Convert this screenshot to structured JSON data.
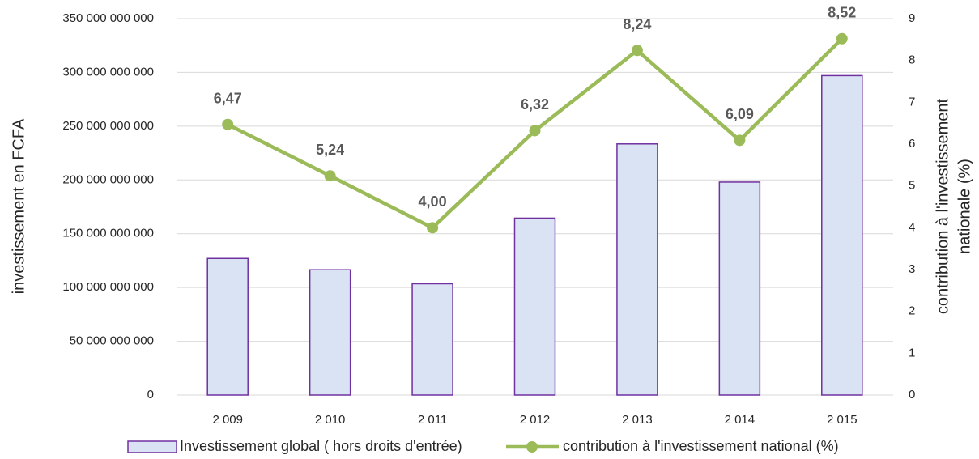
{
  "chart_data": {
    "type": "bar_line",
    "categories": [
      "2 009",
      "2 010",
      "2 011",
      "2 012",
      "2 013",
      "2 014",
      "2 015"
    ],
    "series": [
      {
        "name": "Investissement global ( hors  droits d'entrée)",
        "type": "bar",
        "color": "#dae3f3",
        "edge_color": "#7030a0",
        "values": [
          127000000000,
          116500000000,
          103500000000,
          164500000000,
          233500000000,
          198000000000,
          297000000000
        ]
      },
      {
        "name": "contribution à l'investissement national (%)",
        "type": "line",
        "axis": "y2",
        "color": "#9bbb59",
        "values": [
          6.47,
          5.24,
          4.0,
          6.32,
          8.24,
          6.09,
          8.52
        ],
        "value_labels": [
          "6,47",
          "5,24",
          "4,00",
          "6,32",
          "8,24",
          "6,09",
          "8,52"
        ]
      }
    ],
    "ylabel": "investissement  en FCFA",
    "y2label": [
      "contribution à l'investissement",
      "nationale (%)"
    ],
    "ylim": [
      0,
      350000000000
    ],
    "yticks": [
      0,
      {
        "value": 50000000000,
        "label": "50 000 000 000"
      },
      {
        "value": 100000000000,
        "label": "100 000 000 000"
      },
      {
        "value": 150000000000,
        "label": "150 000 000 000"
      },
      {
        "value": 200000000000,
        "label": "200 000 000 000"
      },
      {
        "value": 250000000000,
        "label": "250 000 000 000"
      },
      {
        "value": 300000000000,
        "label": "300 000 000 000"
      },
      {
        "value": 350000000000,
        "label": "350 000 000 000"
      }
    ],
    "y2lim": [
      0,
      9
    ],
    "y2ticks": [
      0,
      1,
      2,
      3,
      4,
      5,
      6,
      7,
      8,
      9
    ],
    "grid": true,
    "legend": "bottom"
  }
}
